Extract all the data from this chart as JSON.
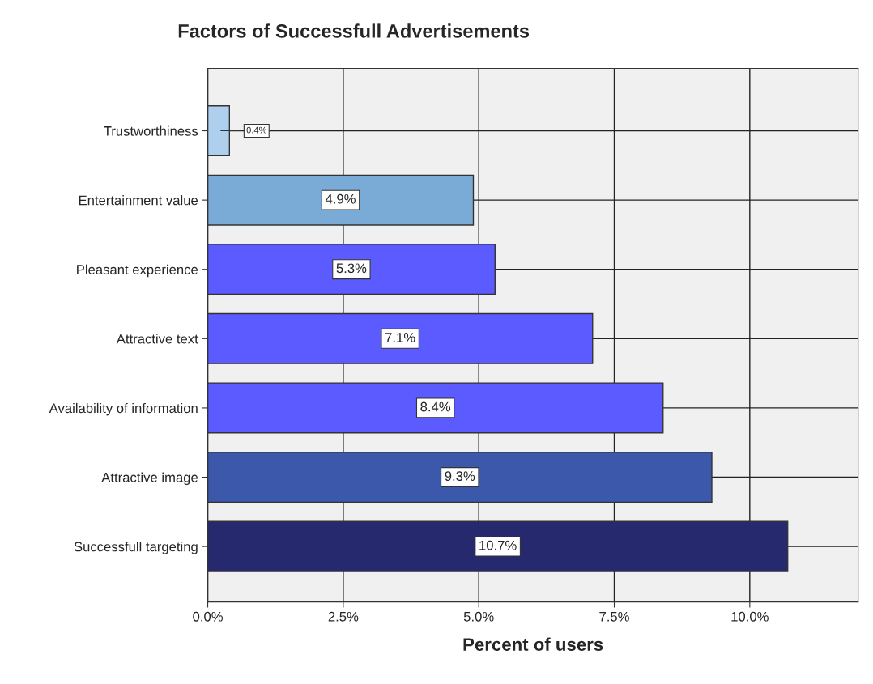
{
  "chart_data": {
    "type": "bar",
    "orientation": "horizontal",
    "title": "Factors of Successfull Advertisements",
    "xlabel": "Percent of users",
    "categories": [
      "Trustworthiness",
      "Entertainment value",
      "Pleasant experience",
      "Attractive text",
      "Availability of information",
      "Attractive image",
      "Successfull targeting"
    ],
    "values": [
      0.4,
      4.9,
      5.3,
      7.1,
      8.4,
      9.3,
      10.7
    ],
    "colors": [
      "#aed0ee",
      "#7aaad6",
      "#5b5bff",
      "#5b5bff",
      "#5b5bff",
      "#3c58aa",
      "#27296f"
    ],
    "value_labels": [
      "0.4%",
      "4.9%",
      "5.3%",
      "7.1%",
      "8.4%",
      "9.3%",
      "10.7%"
    ],
    "xlim": [
      0,
      12
    ],
    "xticks": [
      {
        "value": 0,
        "label": "0.0%"
      },
      {
        "value": 2.5,
        "label": "2.5%"
      },
      {
        "value": 5,
        "label": "5.0%"
      },
      {
        "value": 7.5,
        "label": "7.5%"
      },
      {
        "value": 10,
        "label": "10.0%"
      }
    ],
    "grid": true
  }
}
